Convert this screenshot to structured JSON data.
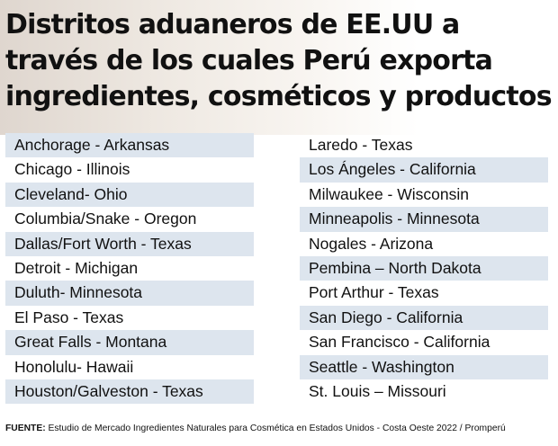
{
  "title": "Distritos aduaneros de EE.UU a\ntravés de los cuales Perú exporta\ningredientes, cosméticos y productos",
  "left_column": [
    "Anchorage - Arkansas",
    "Chicago - Illinois",
    "Cleveland- Ohio",
    "Columbia/Snake - Oregon",
    "Dallas/Fort Worth - Texas",
    "Detroit - Michigan",
    "Duluth- Minnesota",
    "El Paso - Texas",
    "Great Falls - Montana",
    "Honolulu- Hawaii",
    "Houston/Galveston - Texas"
  ],
  "right_column": [
    "Laredo - Texas",
    "Los Ángeles - California",
    "Milwaukee - Wisconsin",
    "Minneapolis - Minnesota",
    "Nogales - Arizona",
    "Pembina – North Dakota",
    "Port Arthur - Texas",
    "San Diego - California",
    "San Francisco - California",
    "Seattle - Washington",
    "St. Louis – Missouri"
  ],
  "source": {
    "label": "FUENTE:",
    "text": " Estudio de Mercado Ingredientes Naturales para Cosmética en Estados Unidos - Costa Oeste 2022 / Promperú"
  },
  "colors": {
    "stripe": "#dde5ee",
    "text": "#111111"
  }
}
